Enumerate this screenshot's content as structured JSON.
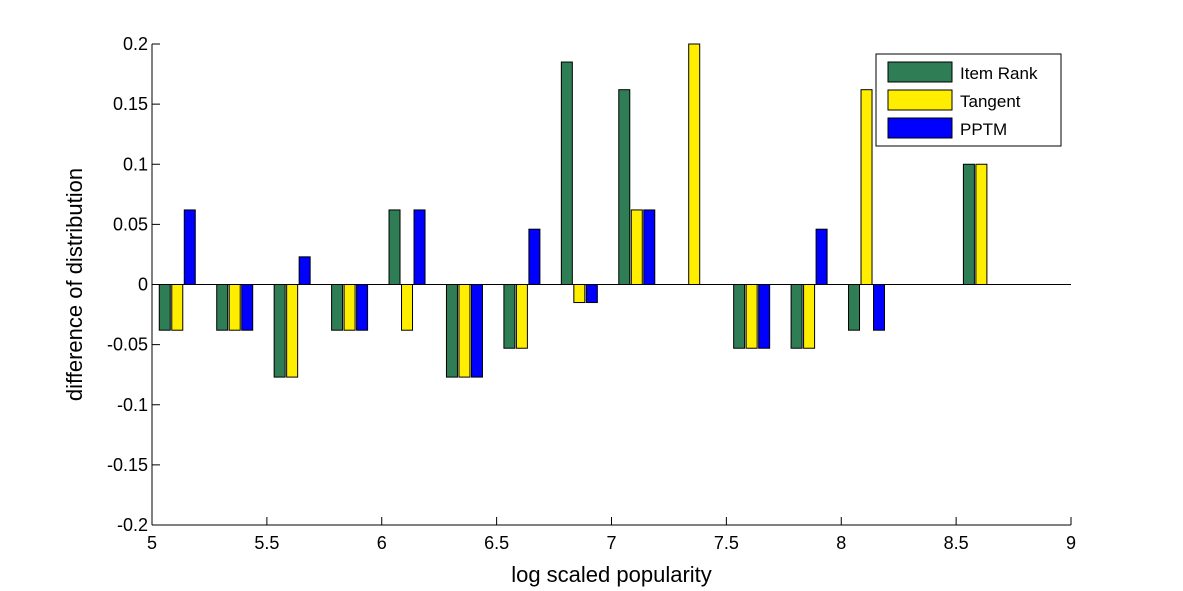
{
  "chart_data": {
    "type": "bar",
    "title": "",
    "xlabel": "log scaled popularity",
    "ylabel": "difference of distribution",
    "xlim": [
      5,
      9
    ],
    "ylim": [
      -0.2,
      0.2
    ],
    "xticks": [
      5,
      5.5,
      6,
      6.5,
      7,
      7.5,
      8,
      8.5,
      9
    ],
    "yticks": [
      -0.2,
      -0.15,
      -0.1,
      -0.05,
      0,
      0.05,
      0.1,
      0.15,
      0.2
    ],
    "xtick_labels": [
      "5",
      "5.5",
      "6",
      "6.5",
      "7",
      "7.5",
      "8",
      "8.5",
      "9"
    ],
    "ytick_labels": [
      "-0.2",
      "-0.15",
      "-0.1",
      "-0.05",
      "0",
      "0.05",
      "0.1",
      "0.15",
      "0.2"
    ],
    "grid": false,
    "legend_position": "top-right",
    "x": [
      5.11,
      5.36,
      5.61,
      5.86,
      6.11,
      6.36,
      6.61,
      6.86,
      7.11,
      7.36,
      7.61,
      7.86,
      8.11,
      8.61
    ],
    "series": [
      {
        "name": "Item Rank",
        "color": "#2e7d55",
        "values": [
          -0.038,
          -0.038,
          -0.077,
          -0.038,
          0.062,
          -0.077,
          -0.053,
          0.185,
          0.162,
          0.0,
          -0.053,
          -0.053,
          -0.038,
          0.1
        ]
      },
      {
        "name": "Tangent",
        "color": "#ffee00",
        "values": [
          -0.038,
          -0.038,
          -0.077,
          -0.038,
          -0.038,
          -0.077,
          -0.053,
          -0.015,
          0.062,
          0.2,
          -0.053,
          -0.053,
          0.162,
          0.1
        ]
      },
      {
        "name": "PPTM",
        "color": "#0000ff",
        "values": [
          0.062,
          -0.038,
          0.023,
          -0.038,
          0.062,
          -0.077,
          0.046,
          -0.015,
          0.062,
          0.0,
          -0.053,
          0.046,
          -0.038,
          0.0
        ]
      }
    ]
  }
}
